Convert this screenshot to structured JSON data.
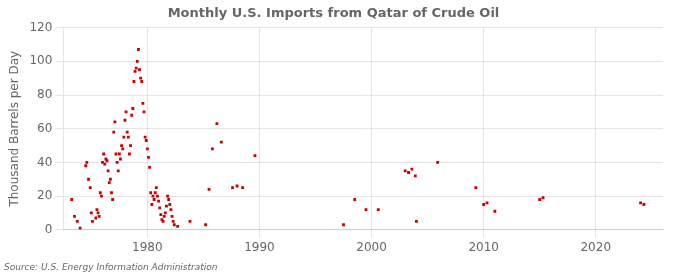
{
  "chart_data": {
    "type": "scatter",
    "title": "Monthly U.S. Imports from Qatar of Crude Oil",
    "ylabel": "Thousand Barrels per Day",
    "annotations": [
      "Source: U.S. Energy Information Administration"
    ],
    "color": "#cc0000",
    "marker": "square",
    "grid": true,
    "xlim": [
      1972.5,
      2026.0
    ],
    "xticks": [
      1980,
      1990,
      2000,
      2010,
      2020
    ],
    "ylim": [
      0,
      120
    ],
    "yticks": [
      0,
      20,
      40,
      60,
      80,
      100,
      120
    ],
    "x": [
      1973.25,
      1973.5,
      1973.75,
      1974.0,
      1974.5,
      1974.6,
      1974.75,
      1974.9,
      1975.0,
      1975.1,
      1975.4,
      1975.5,
      1975.6,
      1975.7,
      1975.8,
      1975.9,
      1976.0,
      1976.1,
      1976.2,
      1976.3,
      1976.4,
      1976.5,
      1976.6,
      1976.7,
      1976.8,
      1976.9,
      1977.0,
      1977.1,
      1977.2,
      1977.3,
      1977.4,
      1977.5,
      1977.6,
      1977.7,
      1977.8,
      1977.9,
      1978.0,
      1978.1,
      1978.2,
      1978.3,
      1978.4,
      1978.5,
      1978.6,
      1978.7,
      1978.8,
      1978.9,
      1979.0,
      1979.1,
      1979.2,
      1979.3,
      1979.4,
      1979.5,
      1979.6,
      1979.7,
      1979.8,
      1979.9,
      1980.0,
      1980.1,
      1980.2,
      1980.3,
      1980.4,
      1980.5,
      1980.6,
      1980.7,
      1980.8,
      1980.9,
      1981.0,
      1981.1,
      1981.2,
      1981.3,
      1981.4,
      1981.5,
      1981.6,
      1981.7,
      1981.8,
      1981.9,
      1982.0,
      1982.1,
      1982.2,
      1982.3,
      1982.4,
      1982.7,
      1983.8,
      1985.2,
      1985.5,
      1985.8,
      1986.2,
      1986.6,
      1987.6,
      1988.0,
      1988.5,
      1989.6,
      1997.5,
      1998.5,
      1999.5,
      2000.6,
      2003.0,
      2003.3,
      2003.6,
      2003.9,
      2004.0,
      2005.9,
      2009.3,
      2010.0,
      2010.3,
      2011.0,
      2015.0,
      2015.3,
      2024.0,
      2024.3
    ],
    "values": [
      18,
      8,
      5,
      1,
      38,
      40,
      30,
      25,
      10,
      5,
      7,
      12,
      10,
      8,
      22,
      20,
      40,
      45,
      39,
      42,
      41,
      35,
      28,
      30,
      22,
      18,
      58,
      64,
      45,
      40,
      35,
      45,
      42,
      50,
      48,
      55,
      65,
      70,
      58,
      55,
      45,
      50,
      68,
      72,
      88,
      94,
      96,
      100,
      107,
      95,
      90,
      88,
      75,
      70,
      55,
      53,
      48,
      43,
      37,
      22,
      15,
      20,
      18,
      22,
      25,
      20,
      17,
      13,
      9,
      6,
      5,
      8,
      10,
      14,
      20,
      18,
      15,
      12,
      8,
      5,
      3,
      2,
      5,
      3,
      24,
      48,
      63,
      52,
      25,
      26,
      25,
      44,
      3,
      18,
      12,
      12,
      35,
      34,
      36,
      32,
      5,
      40,
      25,
      15,
      16,
      11,
      18,
      19,
      16,
      15
    ]
  }
}
